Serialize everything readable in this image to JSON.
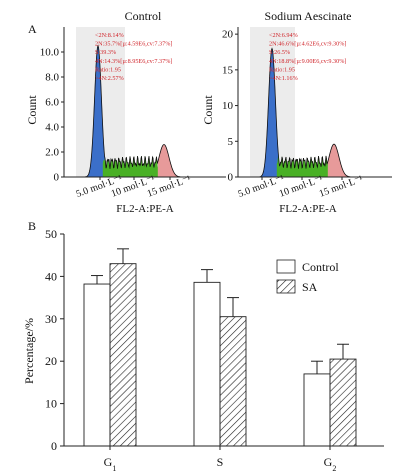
{
  "panel_labels": {
    "a": "A",
    "b": "B"
  },
  "chart_data": [
    {
      "type": "histogram",
      "title": "Control",
      "xlabel": "FL2-A:PE-A",
      "ylabel": "Count",
      "ylim": [
        0,
        12
      ],
      "yticks": [
        "0",
        "2.0",
        "4.0",
        "6.0",
        "8.0",
        "10.0"
      ],
      "xticks": [
        "5.0 mol·L⁻¹",
        "10 mol·L⁻¹",
        "15 mol·L⁻¹"
      ],
      "stats": [
        "<2N:8.14%",
        "2N:35.7%[µ:4.59E6,cv:7.37%]",
        "S:39.3%",
        "4N:14.3%[µ:8.95E6,cv:7.37%]",
        "Ratio:1.95",
        ">4N:2.57%"
      ],
      "colors": {
        "g1": "#3b6fc9",
        "s": "#49b025",
        "g2": "#e79a9a",
        "gate": "#ececec",
        "stats": "#d0242a"
      },
      "g1_peak": 10.5,
      "g2_peak": 2.6
    },
    {
      "type": "histogram",
      "title": "Sodium Aescinate",
      "xlabel": "FL2-A:PE-A",
      "ylabel": "Count",
      "ylim": [
        0,
        21
      ],
      "yticks": [
        "0",
        "5",
        "10",
        "15",
        "20"
      ],
      "xticks": [
        "5.0 mol·L⁻¹",
        "10 mol·L⁻¹",
        "15 mol·L⁻¹"
      ],
      "stats": [
        "<2N:6.94%",
        "2N:46.6%[µ:4.62E6,cv:9.30%]",
        "S:26.5%",
        "4N:18.8%[µ:9.00E6,cv:9.30%]",
        "Ratio:1.95",
        ">4N:1.16%"
      ],
      "colors": {
        "g1": "#3b6fc9",
        "s": "#49b025",
        "g2": "#e79a9a",
        "gate": "#ececec",
        "stats": "#d0242a"
      },
      "g1_peak": 18.0,
      "g2_peak": 4.6
    },
    {
      "type": "bar",
      "categories": [
        "G1",
        "S",
        "G2"
      ],
      "ylabel": "Percentage/%",
      "ylim": [
        0,
        50
      ],
      "yticks": [
        0,
        10,
        20,
        30,
        40,
        50
      ],
      "legend_position": "top-right",
      "series": [
        {
          "name": "Control",
          "values": [
            38.2,
            38.6,
            17.0
          ],
          "errors": [
            2.0,
            3.0,
            3.0
          ],
          "fill": "#ffffff"
        },
        {
          "name": "SA",
          "values": [
            43.0,
            30.5,
            20.5
          ],
          "errors": [
            3.5,
            4.5,
            3.5
          ],
          "fill": "hatch"
        }
      ]
    }
  ]
}
